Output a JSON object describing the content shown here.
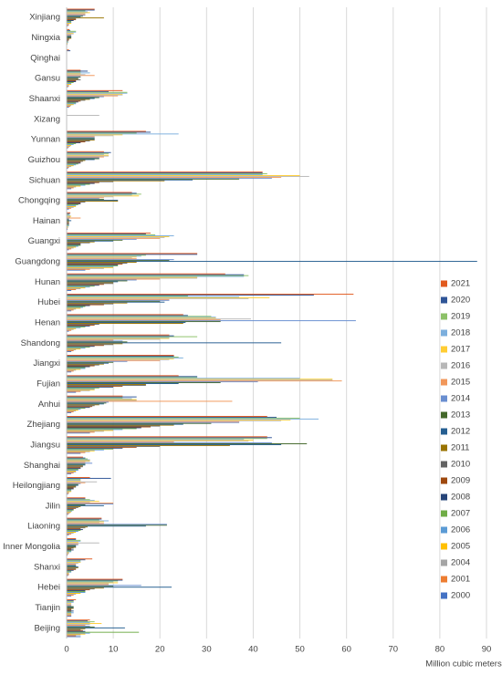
{
  "chart_data": {
    "type": "hbar",
    "x_label": "Million cubic meters",
    "categories": [
      "Beijing",
      "Tianjin",
      "Hebei",
      "Shanxi",
      "Inner Mongolia",
      "Liaoning",
      "Jilin",
      "Heilongjiang",
      "Shanghai",
      "Jiangsu",
      "Zhejiang",
      "Anhui",
      "Fujian",
      "Jiangxi",
      "Shandong",
      "Henan",
      "Hubei",
      "Hunan",
      "Guangdong",
      "Guangxi",
      "Hainan",
      "Chongqing",
      "Sichuan",
      "Guizhou",
      "Yunnan",
      "Xizang",
      "Shaanxi",
      "Gansu",
      "Qinghai",
      "Ningxia",
      "Xinjiang"
    ],
    "xlim": [
      0,
      90
    ],
    "xticks": [
      0,
      10,
      20,
      30,
      40,
      50,
      60,
      70,
      80,
      90
    ],
    "grid": true,
    "series": [
      {
        "name": "2000",
        "color": "#4472C4",
        "values": [
          3,
          1,
          1,
          0.3,
          0.2,
          0.5,
          0.3,
          0.3,
          1,
          3,
          5,
          1,
          2,
          1,
          1,
          0.5,
          1,
          1,
          4,
          0.5,
          0.2,
          0.5,
          1,
          0.3,
          0.3,
          0,
          0.5,
          0.3,
          0,
          0.1,
          0.3
        ]
      },
      {
        "name": "2001",
        "color": "#ED7D31",
        "values": [
          2,
          1,
          1.5,
          0.5,
          0.3,
          1,
          0.5,
          0.5,
          1.5,
          4,
          6,
          1.5,
          3,
          1.5,
          1.5,
          1,
          1.5,
          2,
          5,
          1,
          0.2,
          1,
          1.5,
          0.5,
          0.5,
          0,
          0.8,
          0.5,
          0,
          0.1,
          0.5
        ]
      },
      {
        "name": "2004",
        "color": "#A5A5A5",
        "values": [
          3,
          1,
          2,
          0.5,
          0.5,
          1.5,
          0.8,
          0.5,
          2,
          5,
          8,
          2,
          5,
          2,
          2,
          1.5,
          2,
          3,
          8,
          1.5,
          0.3,
          1.5,
          2,
          1,
          0.8,
          0,
          1,
          0.5,
          0,
          0.2,
          0.5
        ]
      },
      {
        "name": "2005",
        "color": "#FFC000",
        "values": [
          4,
          1,
          3,
          0.5,
          0.5,
          2,
          1,
          1,
          2,
          6,
          10,
          2.5,
          6,
          3,
          3,
          2,
          3,
          4,
          10,
          2,
          0.3,
          2,
          3,
          1.5,
          1,
          0,
          1.5,
          1,
          0,
          0.2,
          1
        ]
      },
      {
        "name": "2006",
        "color": "#5B9BD5",
        "values": [
          5,
          1.5,
          4,
          1,
          1,
          2.5,
          1.2,
          1,
          2.5,
          8,
          12,
          3,
          6,
          4,
          4,
          3,
          3.5,
          5,
          10,
          2.5,
          0.5,
          2,
          4,
          2,
          1.5,
          0,
          2,
          1,
          0,
          0.3,
          1
        ]
      },
      {
        "name": "2007",
        "color": "#70AD47",
        "values": [
          15.5,
          1,
          4,
          1,
          1,
          3,
          1.5,
          1,
          2.5,
          10,
          15,
          4,
          7,
          4,
          5,
          4,
          4,
          6,
          11,
          3,
          0.5,
          2.5,
          5,
          2.5,
          2,
          0,
          2,
          1.5,
          0,
          0.3,
          1
        ]
      },
      {
        "name": "2008",
        "color": "#264478",
        "values": [
          4,
          1.5,
          4,
          1.5,
          1.5,
          3.5,
          1.5,
          1.5,
          3,
          12,
          16,
          5,
          10,
          5,
          6,
          5,
          5,
          7,
          11,
          3,
          0.5,
          3,
          6,
          3,
          3,
          0,
          2.5,
          2,
          0,
          0.3,
          1.5
        ]
      },
      {
        "name": "2009",
        "color": "#9E480E",
        "values": [
          3.5,
          1,
          5,
          2,
          1,
          3,
          2,
          1.5,
          3,
          15,
          18,
          5.5,
          12,
          6,
          8,
          6,
          8,
          8,
          12,
          3,
          0.5,
          3,
          7,
          3,
          4,
          0,
          3,
          2,
          0,
          0.5,
          2
        ]
      },
      {
        "name": "2010",
        "color": "#636363",
        "values": [
          3,
          1,
          6,
          2,
          1.5,
          4,
          2.5,
          2,
          3.5,
          20,
          20,
          6,
          17,
          7,
          10,
          7,
          10,
          10,
          13,
          5,
          0.5,
          4,
          10,
          3.5,
          5,
          0,
          4,
          3,
          0,
          0.5,
          2
        ]
      },
      {
        "name": "2011",
        "color": "#997300",
        "values": [
          4,
          1.5,
          8,
          2.5,
          2,
          4.5,
          3,
          2,
          3.5,
          35,
          23,
          7,
          17,
          8,
          12,
          25,
          13,
          10,
          15,
          6,
          0.5,
          11,
          21,
          4,
          6,
          0,
          5,
          2.5,
          0,
          1,
          8
        ]
      },
      {
        "name": "2012",
        "color": "#255E91",
        "values": [
          12.5,
          1.5,
          22.5,
          2.5,
          2,
          17,
          8,
          2.5,
          4,
          46,
          25,
          8,
          24,
          9,
          46,
          25.5,
          21,
          11,
          88,
          10,
          1,
          11,
          27,
          6,
          6,
          0,
          6,
          2.5,
          0,
          1,
          3
        ]
      },
      {
        "name": "2013",
        "color": "#43682B",
        "values": [
          6,
          1.5,
          10,
          2,
          2,
          21.5,
          4,
          2.5,
          4,
          51.5,
          31,
          8.5,
          33,
          10,
          13,
          33,
          20,
          13,
          22,
          12,
          0.5,
          8,
          37,
          7,
          6,
          0,
          7,
          3,
          0,
          1,
          3.5
        ]
      },
      {
        "name": "2014",
        "color": "#698ED0",
        "values": [
          5,
          1,
          16,
          2,
          2.5,
          21.5,
          10,
          3,
          5.5,
          44,
          37,
          9,
          41,
          13,
          12,
          62,
          22,
          15,
          23,
          15,
          0.5,
          7,
          44,
          7,
          6,
          0,
          8,
          3,
          0,
          1,
          4
        ]
      },
      {
        "name": "2015",
        "color": "#F1975A",
        "values": [
          4,
          1,
          9,
          2,
          2.5,
          8,
          10,
          4,
          4,
          23,
          37,
          35.5,
          59,
          20,
          10,
          33,
          22,
          20,
          15,
          20,
          3,
          8,
          46,
          8,
          6,
          0,
          11,
          6,
          0,
          1,
          4
        ]
      },
      {
        "name": "2016",
        "color": "#B7B7B7",
        "values": [
          5,
          1,
          9,
          2.5,
          7,
          7,
          5,
          6.5,
          5,
          39,
          46,
          15,
          57,
          22,
          20,
          39.5,
          39,
          28,
          14,
          21,
          0.8,
          10,
          52,
          9,
          10,
          7,
          12,
          4,
          0,
          1.5,
          4
        ]
      },
      {
        "name": "2017",
        "color": "#FFCD33",
        "values": [
          7.5,
          1,
          11,
          3,
          2.5,
          8,
          7,
          3,
          5,
          40,
          48,
          15,
          57,
          23,
          22,
          32,
          43.5,
          28,
          15,
          22,
          1,
          15.5,
          50,
          9,
          12,
          0,
          12,
          3,
          0,
          1.5,
          5
        ]
      },
      {
        "name": "2018",
        "color": "#7CAFDD",
        "values": [
          5,
          1.5,
          10,
          3,
          3,
          9,
          6,
          3,
          5,
          38,
          54,
          14,
          50,
          25,
          22,
          32,
          37,
          38,
          16,
          23,
          0.8,
          14,
          42,
          8,
          24,
          0,
          13,
          5,
          0,
          2,
          4.5
        ]
      },
      {
        "name": "2019",
        "color": "#8CC168",
        "values": [
          6,
          1.5,
          11,
          3,
          3,
          7,
          5,
          3,
          4.5,
          43,
          50,
          12,
          28,
          24,
          28,
          31,
          26,
          39,
          17,
          19,
          0.5,
          16,
          43,
          9,
          15,
          0,
          13,
          3,
          0,
          2,
          4
        ]
      },
      {
        "name": "2020",
        "color": "#2F5597",
        "values": [
          4.5,
          1.5,
          12,
          4,
          2,
          7.5,
          4,
          9.5,
          4,
          44,
          45,
          15,
          28,
          23,
          23,
          26,
          53,
          38,
          28,
          17,
          0.7,
          15,
          42,
          9.5,
          18,
          0,
          9,
          4.5,
          0.8,
          0.8,
          6
        ]
      },
      {
        "name": "2021",
        "color": "#E15A1F",
        "values": [
          5,
          2,
          12,
          5.5,
          2,
          7.5,
          4,
          5,
          3.5,
          43,
          43,
          12,
          24,
          23,
          22,
          25,
          61.5,
          34,
          28,
          18,
          0.8,
          14,
          42,
          8,
          17,
          0,
          12,
          3,
          0.5,
          0.6,
          6
        ]
      }
    ]
  }
}
